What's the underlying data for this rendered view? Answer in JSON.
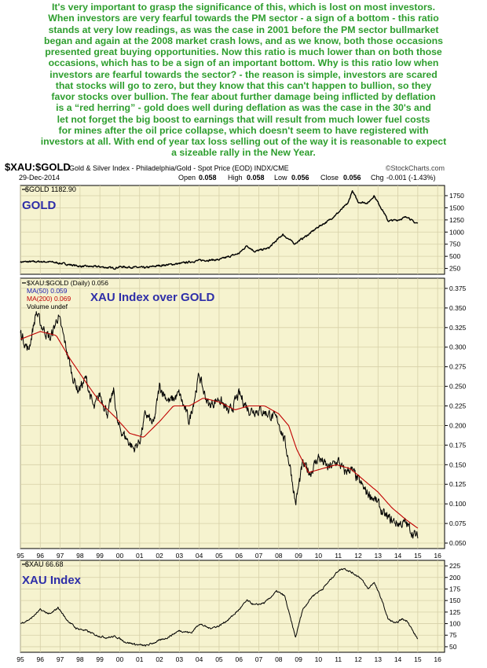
{
  "commentary": [
    "It's very important to grasp the significance of this, which is lost on most investors.",
    "When investors are very fearful towards the PM sector - a sign of a bottom - this ratio",
    "stands at very low readings, as was the case in 2001 before the PM sector bullmarket",
    "began and again at the 2008 market crash lows, and as we know, both those occasions",
    "presented great buying opportunities. Now this ratio is much lower than on both those",
    "occasions, which has to be a sign of an important bottom. Why is this ratio low when",
    "investors are fearful towards the sector? - the reason is simple, investors are scared",
    "that stocks will go to zero, but they know that this can't happen to bullion, so they",
    "favor stocks over bullion. The fear about further damage being inflicted by deflation",
    "is a “red herring” - gold does well during deflation as was the case in the 30's and",
    "let not forget the big boost to earnings that will result from much lower fuel costs",
    "for mines after the oil price collapse, which doesn't seem to have registered with",
    "investors at all. With end of year tax loss selling out of the way it is reasonable to expect",
    "a sizeable rally in the New Year."
  ],
  "header": {
    "symbol": "$XAU:$GOLD",
    "description": "Gold & Silver Index - Philadelphia/Gold - Spot Price (EOD) INDX/CME",
    "watermark": "©StockCharts.com",
    "date": "29-Dec-2014",
    "open_label": "Open",
    "open": "0.058",
    "high_label": "High",
    "high": "0.058",
    "low_label": "Low",
    "low": "0.056",
    "close_label": "Close",
    "close": "0.056",
    "chg_label": "Chg",
    "chg": "-0.001 (-1.43%)"
  },
  "colors": {
    "plot_bg": "#f6f3cf",
    "grid": "#d6d0a8",
    "price": "#000000",
    "ma50": "#1a1ab0",
    "ma200": "#c00000",
    "title": "#2e2ea8",
    "intro_text": "#2e9e2e",
    "ma200_legend": "#c00000"
  },
  "chart_data": [
    {
      "type": "line",
      "title": "GOLD",
      "legend": [
        "$GOLD 1182.90"
      ],
      "yticks": [
        250,
        500,
        750,
        1000,
        1250,
        1500,
        1750
      ],
      "ylim": [
        130,
        1960
      ],
      "xlim": [
        1995,
        2016.35
      ],
      "series": [
        {
          "name": "$GOLD",
          "x": [
            1995.0,
            1996.0,
            1996.5,
            1997.3,
            1998.0,
            1999.0,
            1999.7,
            2000.0,
            2001.3,
            2002.0,
            2003.0,
            2004.0,
            2005.0,
            2006.0,
            2006.4,
            2006.8,
            2007.5,
            2008.2,
            2008.8,
            2009.5,
            2010.0,
            2010.5,
            2011.0,
            2011.5,
            2011.7,
            2012.0,
            2012.5,
            2012.8,
            2013.3,
            2013.5,
            2014.0,
            2014.5,
            2014.8,
            2015.0
          ],
          "y": [
            385,
            390,
            385,
            340,
            295,
            285,
            255,
            285,
            265,
            310,
            350,
            415,
            430,
            560,
            720,
            600,
            670,
            950,
            760,
            950,
            1110,
            1230,
            1400,
            1600,
            1850,
            1620,
            1600,
            1750,
            1400,
            1230,
            1250,
            1320,
            1200,
            1182
          ]
        }
      ]
    },
    {
      "type": "line",
      "title": "XAU Index over GOLD",
      "legend": [
        "$XAU:$GOLD (Daily) 0.056",
        "MA(50) 0.059",
        "MA(200) 0.069",
        "Volume undef"
      ],
      "yticks": [
        0.05,
        0.075,
        0.1,
        0.125,
        0.15,
        0.175,
        0.2,
        0.225,
        0.25,
        0.275,
        0.3,
        0.325,
        0.35,
        0.375
      ],
      "ylim": [
        0.043,
        0.388
      ],
      "xlim": [
        1995,
        2016.35
      ],
      "series": [
        {
          "name": "$XAU:$GOLD",
          "x": [
            1995.0,
            1995.4,
            1995.8,
            1996.0,
            1996.5,
            1996.9,
            1997.2,
            1997.6,
            1997.9,
            1998.3,
            1998.7,
            1999.0,
            1999.4,
            1999.7,
            1999.9,
            2000.3,
            2000.7,
            2001.0,
            2001.3,
            2001.7,
            2002.0,
            2002.5,
            2003.0,
            2003.5,
            2004.0,
            2004.2,
            2004.5,
            2005.0,
            2005.5,
            2006.0,
            2006.5,
            2007.0,
            2007.5,
            2008.0,
            2008.3,
            2008.6,
            2008.85,
            2009.2,
            2009.6,
            2010.0,
            2010.5,
            2011.0,
            2011.3,
            2011.6,
            2012.0,
            2012.4,
            2012.7,
            2013.0,
            2013.3,
            2013.6,
            2014.0,
            2014.4,
            2014.7,
            2015.0
          ],
          "y": [
            0.32,
            0.295,
            0.345,
            0.33,
            0.31,
            0.34,
            0.31,
            0.265,
            0.245,
            0.26,
            0.22,
            0.24,
            0.215,
            0.245,
            0.2,
            0.185,
            0.17,
            0.18,
            0.215,
            0.2,
            0.25,
            0.23,
            0.24,
            0.205,
            0.265,
            0.245,
            0.225,
            0.235,
            0.215,
            0.24,
            0.22,
            0.22,
            0.215,
            0.205,
            0.18,
            0.145,
            0.1,
            0.15,
            0.14,
            0.16,
            0.145,
            0.155,
            0.14,
            0.145,
            0.13,
            0.115,
            0.11,
            0.1,
            0.085,
            0.08,
            0.075,
            0.075,
            0.065,
            0.056
          ]
        },
        {
          "name": "MA(200)",
          "x": [
            1995.0,
            1996.0,
            1996.8,
            1997.5,
            1998.3,
            1999.0,
            1999.8,
            2000.5,
            2001.2,
            2002.0,
            2002.7,
            2003.5,
            2004.2,
            2005.0,
            2005.8,
            2006.5,
            2007.3,
            2008.0,
            2008.5,
            2008.9,
            2009.5,
            2010.2,
            2010.9,
            2011.6,
            2012.3,
            2013.0,
            2013.7,
            2014.4,
            2015.0
          ],
          "y": [
            0.31,
            0.32,
            0.315,
            0.285,
            0.255,
            0.23,
            0.21,
            0.19,
            0.185,
            0.205,
            0.225,
            0.225,
            0.235,
            0.23,
            0.22,
            0.225,
            0.225,
            0.215,
            0.2,
            0.17,
            0.14,
            0.145,
            0.15,
            0.145,
            0.13,
            0.115,
            0.095,
            0.08,
            0.069
          ]
        }
      ]
    },
    {
      "type": "line",
      "title": "XAU Index",
      "legend": [
        "$XAU 66.68"
      ],
      "yticks": [
        50,
        75,
        100,
        125,
        150,
        175,
        200,
        225
      ],
      "ylim": [
        38,
        237
      ],
      "xlim": [
        1995,
        2016.35
      ],
      "xticks": [
        "95",
        "96",
        "97",
        "98",
        "99",
        "00",
        "01",
        "02",
        "03",
        "04",
        "05",
        "06",
        "07",
        "08",
        "09",
        "10",
        "11",
        "12",
        "13",
        "14",
        "15",
        "16"
      ],
      "series": [
        {
          "name": "$XAU",
          "x": [
            1995.0,
            1995.5,
            1996.0,
            1996.5,
            1996.9,
            1997.3,
            1997.8,
            1998.3,
            1998.8,
            1999.3,
            1999.8,
            2000.3,
            2000.8,
            2001.3,
            2001.8,
            2002.4,
            2003.0,
            2003.6,
            2004.0,
            2004.5,
            2005.0,
            2005.5,
            2006.0,
            2006.4,
            2006.8,
            2007.3,
            2007.9,
            2008.3,
            2008.6,
            2008.85,
            2009.2,
            2009.7,
            2010.2,
            2010.7,
            2011.0,
            2011.3,
            2011.7,
            2012.1,
            2012.5,
            2012.8,
            2013.2,
            2013.5,
            2013.9,
            2014.2,
            2014.5,
            2014.8,
            2015.0
          ],
          "y": [
            100,
            110,
            130,
            120,
            135,
            110,
            90,
            85,
            75,
            70,
            72,
            60,
            55,
            52,
            60,
            70,
            85,
            80,
            100,
            90,
            95,
            110,
            130,
            150,
            140,
            145,
            170,
            160,
            110,
            70,
            130,
            160,
            175,
            200,
            215,
            220,
            210,
            200,
            175,
            190,
            150,
            110,
            100,
            110,
            105,
            80,
            67
          ]
        }
      ]
    }
  ]
}
